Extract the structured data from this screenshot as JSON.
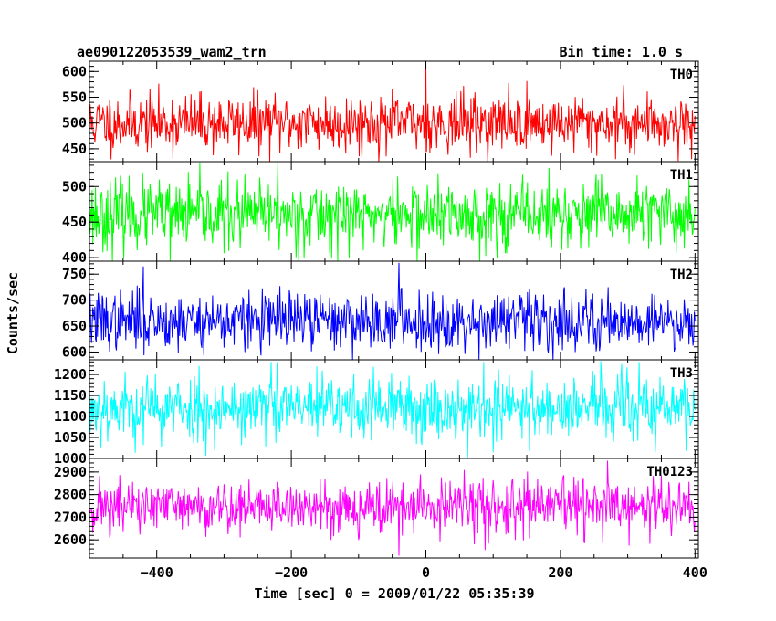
{
  "chart_data": {
    "type": "line",
    "title": "ae090122053539_wam2_trn",
    "bin_time_label": "Bin time: 1.0 s",
    "xlabel": "Time [sec] 0 = 2009/01/22 05:35:39",
    "ylabel": "Counts/sec",
    "xlim": [
      -500,
      405
    ],
    "x_ticks": [
      -400,
      -200,
      0,
      200,
      400
    ],
    "x_tick_labels": [
      "−400",
      "−200",
      "0",
      "200",
      "400"
    ],
    "grid": false,
    "panels": [
      {
        "name": "TH0",
        "color": "#ff0000",
        "ylim": [
          425,
          620
        ],
        "y_ticks": [
          450,
          500,
          550,
          600
        ],
        "y_tick_labels": [
          "450",
          "500",
          "550",
          "600"
        ],
        "mean": 500,
        "std": 28,
        "seed": 11,
        "spikes": [
          [
            0,
            620
          ],
          [
            395,
            430
          ]
        ]
      },
      {
        "name": "TH1",
        "color": "#00ff00",
        "ylim": [
          395,
          535
        ],
        "y_ticks": [
          400,
          450,
          500
        ],
        "y_tick_labels": [
          "400",
          "450",
          "500"
        ],
        "mean": 460,
        "std": 24,
        "seed": 23,
        "spikes": [
          [
            -380,
            395
          ],
          [
            -220,
            535
          ]
        ]
      },
      {
        "name": "TH2",
        "color": "#0000ff",
        "ylim": [
          585,
          775
        ],
        "y_ticks": [
          600,
          650,
          700,
          750
        ],
        "y_tick_labels": [
          "600",
          "650",
          "700",
          "750"
        ],
        "mean": 660,
        "std": 28,
        "seed": 37,
        "spikes": [
          [
            -420,
            765
          ],
          [
            -40,
            772
          ]
        ]
      },
      {
        "name": "TH3",
        "color": "#00ffff",
        "ylim": [
          1000,
          1235
        ],
        "y_ticks": [
          1000,
          1050,
          1100,
          1150,
          1200
        ],
        "y_tick_labels": [
          "1000",
          "1050",
          "1100",
          "1150",
          "1200"
        ],
        "mean": 1120,
        "std": 40,
        "seed": 53,
        "spikes": [
          [
            -230,
            1230
          ],
          [
            260,
            1232
          ]
        ]
      },
      {
        "name": "TH0123",
        "color": "#ff00ff",
        "ylim": [
          2520,
          2960
        ],
        "y_ticks": [
          2600,
          2700,
          2800,
          2900
        ],
        "y_tick_labels": [
          "2600",
          "2700",
          "2800",
          "2900"
        ],
        "mean": 2745,
        "std": 60,
        "seed": 71,
        "spikes": [
          [
            -40,
            2530
          ],
          [
            270,
            2950
          ]
        ]
      }
    ]
  }
}
